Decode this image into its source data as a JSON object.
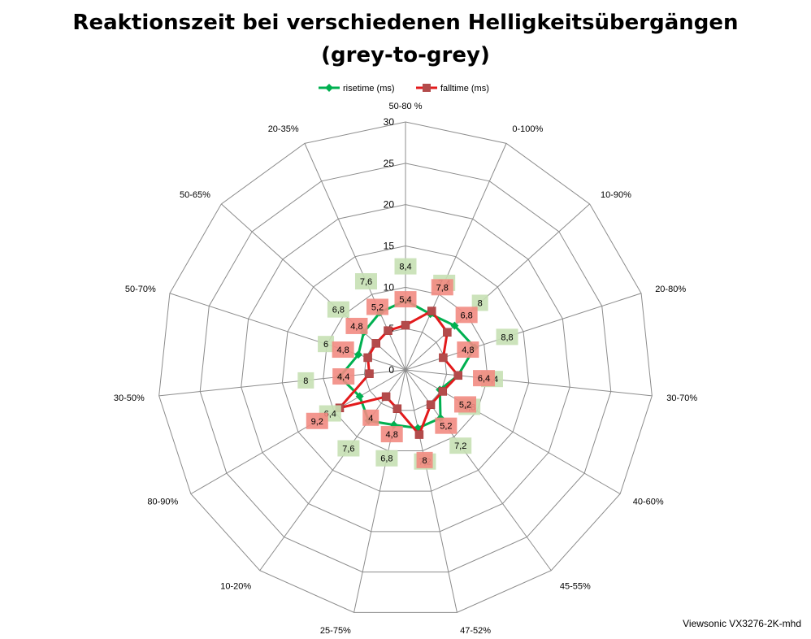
{
  "chart_data": {
    "type": "radar",
    "title_line1": "Reaktionszeit bei verschiedenen Helligkeitsübergängen",
    "title_line2": "(grey-to-grey)",
    "categories": [
      "50-80 %",
      "0-100%",
      "10-90%",
      "20-80%",
      "30-70%",
      "40-60%",
      "45-55%",
      "47-52%",
      "25-75%",
      "10-20%",
      "80-90%",
      "30-50%",
      "50-70%",
      "50-65%",
      "20-35%"
    ],
    "rticks": [
      "0",
      "5",
      "10",
      "15",
      "20",
      "25",
      "30"
    ],
    "rmax": 30,
    "series": [
      {
        "name": "risetime (ms)",
        "color": "#00b050",
        "label_bg": "#c6e0b4",
        "values": [
          8.4,
          7.4,
          8,
          8.8,
          6.4,
          4.8,
          7.2,
          7.2,
          6.8,
          7.6,
          6.4,
          8,
          6,
          6.8,
          7.6
        ]
      },
      {
        "name": "falltime (ms)",
        "color": "#e31a1c",
        "label_bg": "#f28b82",
        "values": [
          5.4,
          7.8,
          6.8,
          4.8,
          6.4,
          5.2,
          5.2,
          8,
          4.8,
          4,
          9.2,
          4.4,
          4.8,
          4.8,
          5.2
        ]
      }
    ],
    "source": "Viewsonic VX3276-2K-mhd"
  }
}
